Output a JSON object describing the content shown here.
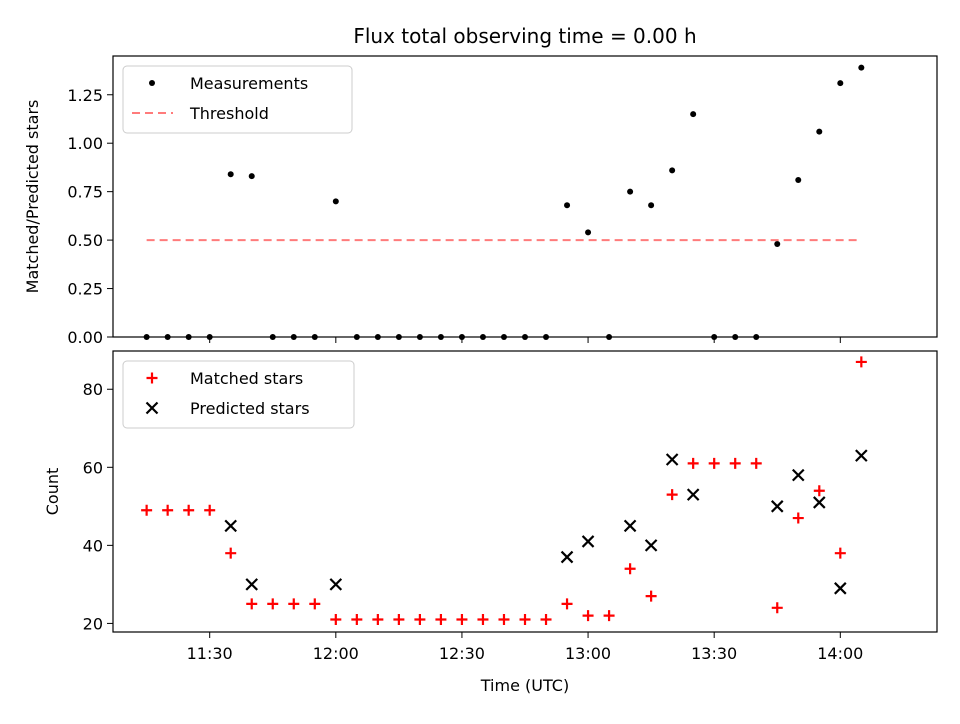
{
  "chart_data": {
    "title": "Flux total observing time = 0.00 h",
    "xlabel": "Time (UTC)",
    "x_ticks": [
      "11:30",
      "12:00",
      "12:30",
      "13:00",
      "13:30",
      "14:00"
    ],
    "x_tick_minutes": [
      690,
      720,
      750,
      780,
      810,
      840
    ],
    "x_range_minutes": [
      667,
      863
    ],
    "panels": [
      {
        "type": "scatter",
        "ylabel": "Matched/Predicted stars",
        "ylim": [
          0.0,
          1.45
        ],
        "y_ticks": [
          "0.00",
          "0.25",
          "0.50",
          "0.75",
          "1.00",
          "1.25"
        ],
        "y_tick_values": [
          0.0,
          0.25,
          0.5,
          0.75,
          1.0,
          1.25
        ],
        "legend_position": "upper left",
        "series": [
          {
            "name": "Measurements",
            "marker": "dot",
            "color": "#000000",
            "x_minutes": [
              675,
              680,
              685,
              690,
              695,
              700,
              705,
              710,
              715,
              720,
              725,
              730,
              735,
              740,
              745,
              750,
              755,
              760,
              765,
              770,
              775,
              780,
              785,
              790,
              795,
              800,
              805,
              810,
              815,
              820,
              825,
              830,
              835,
              840,
              845
            ],
            "y": [
              0.0,
              0.0,
              0.0,
              0.0,
              0.84,
              0.83,
              0.0,
              0.0,
              0.0,
              0.7,
              0.0,
              0.0,
              0.0,
              0.0,
              0.0,
              0.0,
              0.0,
              0.0,
              0.0,
              0.0,
              0.68,
              0.54,
              0.0,
              0.75,
              0.68,
              0.86,
              1.15,
              0.0,
              0.0,
              0.0,
              0.48,
              0.81,
              1.06,
              1.31,
              1.39
            ]
          },
          {
            "name": "Threshold",
            "style": "dashed",
            "color": "#ff7b7b",
            "x_minutes": [
              675,
              845
            ],
            "y": [
              0.5,
              0.5
            ]
          }
        ]
      },
      {
        "type": "scatter",
        "ylabel": "Count",
        "ylim": [
          17.8,
          89.8
        ],
        "y_ticks": [
          "20",
          "40",
          "60",
          "80"
        ],
        "y_tick_values": [
          20,
          40,
          60,
          80
        ],
        "legend_position": "upper left",
        "series": [
          {
            "name": "Matched stars",
            "marker": "plus",
            "color": "#ff0000",
            "x_minutes": [
              675,
              680,
              685,
              690,
              695,
              700,
              705,
              710,
              715,
              720,
              725,
              730,
              735,
              740,
              745,
              750,
              755,
              760,
              765,
              770,
              775,
              780,
              785,
              790,
              795,
              800,
              805,
              810,
              815,
              820,
              825,
              830,
              835,
              840,
              845
            ],
            "y": [
              49,
              49,
              49,
              49,
              38,
              25,
              25,
              25,
              25,
              21,
              21,
              21,
              21,
              21,
              21,
              21,
              21,
              21,
              21,
              21,
              25,
              22,
              22,
              34,
              27,
              53,
              61,
              61,
              61,
              61,
              24,
              47,
              54,
              38,
              87
            ]
          },
          {
            "name": "Predicted stars",
            "marker": "x",
            "color": "#000000",
            "x_minutes": [
              695,
              700,
              720,
              775,
              780,
              790,
              795,
              800,
              805,
              825,
              830,
              835,
              840,
              845
            ],
            "y": [
              45,
              30,
              30,
              37,
              41,
              45,
              40,
              62,
              53,
              50,
              58,
              51,
              29,
              63
            ]
          }
        ]
      }
    ]
  }
}
